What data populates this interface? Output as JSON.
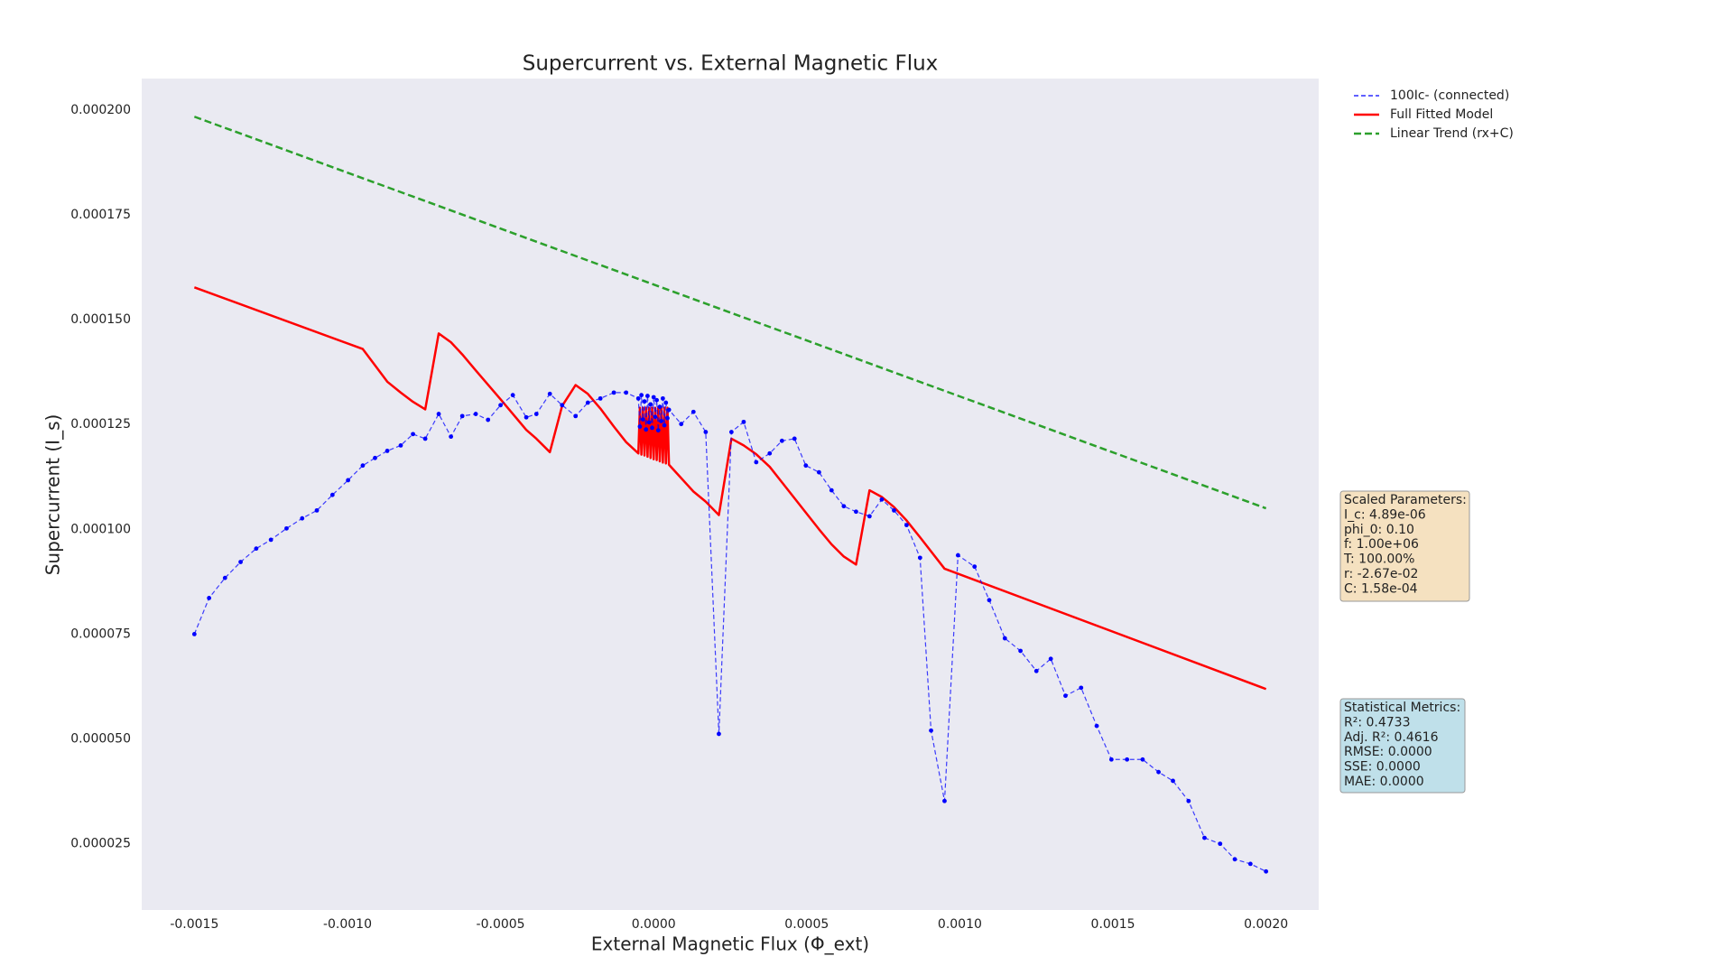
{
  "chart_data": {
    "type": "line",
    "title": "Supercurrent vs. External Magnetic Flux",
    "x_label": "External Magnetic Flux (Φ_ext)",
    "y_label": "Supercurrent (I_s)",
    "xlim": [
      -0.001672,
      0.002172
    ],
    "ylim": [
      9.2e-06,
      0.0002075
    ],
    "xticks": [
      {
        "value": -0.0015,
        "label": "-0.0015"
      },
      {
        "value": -0.001,
        "label": "-0.0010"
      },
      {
        "value": -0.0005,
        "label": "-0.0005"
      },
      {
        "value": 0,
        "label": "0.0000"
      },
      {
        "value": 0.0005,
        "label": "0.0005"
      },
      {
        "value": 0.001,
        "label": "0.0010"
      },
      {
        "value": 0.0015,
        "label": "0.0015"
      },
      {
        "value": 0.002,
        "label": "0.0020"
      }
    ],
    "yticks": [
      {
        "value": 2.5e-05,
        "label": "0.000025"
      },
      {
        "value": 5e-05,
        "label": "0.000050"
      },
      {
        "value": 7.5e-05,
        "label": "0.000075"
      },
      {
        "value": 0.0001,
        "label": "0.000100"
      },
      {
        "value": 0.000125,
        "label": "0.000125"
      },
      {
        "value": 0.00015,
        "label": "0.000150"
      },
      {
        "value": 0.000175,
        "label": "0.000175"
      },
      {
        "value": 0.0002,
        "label": "0.000200"
      }
    ],
    "grid": false,
    "background": "#eaeaf2",
    "legend_position": "outside upper right",
    "series": [
      {
        "name": "100Ic- (connected)",
        "color": "#0000ff",
        "linestyle": "dashed",
        "marker": true,
        "x": [
          -0.0015,
          -0.001452,
          -0.0014,
          -0.001349,
          -0.001298,
          -0.00125,
          -0.001199,
          -0.001148,
          -0.0011,
          -0.001049,
          -0.000998,
          -0.00095,
          -0.00091,
          -0.00087,
          -0.000826,
          -0.000786,
          -0.000746,
          -0.000702,
          -0.000662,
          -0.000625,
          -0.000581,
          -0.000541,
          -0.0005,
          -0.00046,
          -0.000416,
          -0.000383,
          -0.000339,
          -0.000299,
          -0.000255,
          -0.000215,
          -0.000174,
          -0.00013,
          -9e-05,
          -5e-05,
          -4.5e-05,
          -4e-05,
          -3.5e-05,
          -3e-05,
          -2.5e-05,
          -2e-05,
          -1.5e-05,
          -1e-05,
          -5e-06,
          0,
          5e-06,
          1e-05,
          1.5e-05,
          2e-05,
          2.5e-05,
          3e-05,
          3.5e-05,
          4e-05,
          4.5e-05,
          5e-05,
          9e-05,
          0.00013,
          0.00017,
          0.000213,
          0.000254,
          0.000294,
          0.000335,
          0.000379,
          0.000419,
          0.00046,
          0.000497,
          0.00054,
          0.000581,
          0.000621,
          0.000661,
          0.000705,
          0.000745,
          0.000785,
          0.000826,
          0.00087,
          0.000906,
          0.00095,
          0.000994,
          0.001048,
          0.001096,
          0.001147,
          0.001198,
          0.00125,
          0.001297,
          0.001345,
          0.001396,
          0.001447,
          0.001495,
          0.001546,
          0.001597,
          0.001649,
          0.001696,
          0.001747,
          0.001799,
          0.00185,
          0.001898,
          0.001949,
          0.002
        ],
        "values": [
          7.5e-05,
          8.36e-05,
          8.84e-05,
          9.22e-05,
          9.54e-05,
          9.75e-05,
          0.0001002,
          0.0001026,
          0.0001045,
          0.0001082,
          0.0001117,
          0.0001152,
          0.000117,
          0.0001187,
          0.00012,
          0.0001227,
          0.0001216,
          0.0001275,
          0.0001221,
          0.000127,
          0.0001275,
          0.0001261,
          0.0001296,
          0.000132,
          0.0001267,
          0.0001275,
          0.0001323,
          0.0001296,
          0.000127,
          0.0001302,
          0.0001312,
          0.0001326,
          0.0001326,
          0.0001312,
          0.0001245,
          0.000132,
          0.0001262,
          0.0001305,
          0.0001238,
          0.0001318,
          0.0001255,
          0.0001298,
          0.0001242,
          0.0001315,
          0.0001268,
          0.0001308,
          0.0001236,
          0.0001292,
          0.0001258,
          0.0001312,
          0.0001248,
          0.0001302,
          0.0001265,
          0.0001285,
          0.0001251,
          0.000128,
          0.0001232,
          5.12e-05,
          0.0001232,
          0.0001256,
          0.000116,
          0.0001181,
          0.0001211,
          0.0001216,
          0.0001152,
          0.0001136,
          0.0001093,
          0.0001055,
          0.0001042,
          0.0001031,
          0.0001071,
          0.0001045,
          0.000101,
          9.32e-05,
          5.2e-05,
          3.52e-05,
          9.38e-05,
          9.11e-05,
          8.31e-05,
          7.4e-05,
          7.1e-05,
          6.62e-05,
          6.91e-05,
          6.03e-05,
          6.22e-05,
          5.31e-05,
          4.51e-05,
          4.51e-05,
          4.51e-05,
          4.21e-05,
          4e-05,
          3.52e-05,
          2.64e-05,
          2.5e-05,
          2.13e-05,
          2.02e-05,
          1.84e-05
        ]
      },
      {
        "name": "Full Fitted Model",
        "color": "#ff0000",
        "linestyle": "solid",
        "marker": false,
        "x": [
          -0.0015,
          -0.00095,
          -0.00087,
          -0.000826,
          -0.000786,
          -0.000746,
          -0.000702,
          -0.000662,
          -0.000625,
          -0.000581,
          -0.0005,
          -0.000416,
          -0.000383,
          -0.000339,
          -0.000299,
          -0.000255,
          -0.000215,
          -0.000174,
          -0.00013,
          -9e-05,
          -5e-05,
          -4.5e-05,
          -4e-05,
          -3.5e-05,
          -3e-05,
          -2.5e-05,
          -2e-05,
          -1.5e-05,
          -1e-05,
          -5e-06,
          0,
          5e-06,
          1e-05,
          1.5e-05,
          2e-05,
          2.5e-05,
          3e-05,
          3.5e-05,
          4e-05,
          4.5e-05,
          5e-05,
          9e-05,
          0.00013,
          0.00017,
          0.000213,
          0.000254,
          0.000294,
          0.000335,
          0.000379,
          0.000419,
          0.00046,
          0.00054,
          0.000581,
          0.000621,
          0.000661,
          0.000705,
          0.000745,
          0.000785,
          0.000826,
          0.00087,
          0.00095,
          0.002
        ],
        "values": [
          0.0001577,
          0.000143,
          0.0001352,
          0.0001326,
          0.0001304,
          0.0001286,
          0.0001467,
          0.0001446,
          0.0001417,
          0.0001379,
          0.000131,
          0.0001237,
          0.0001216,
          0.0001184,
          0.0001294,
          0.0001344,
          0.0001323,
          0.0001288,
          0.0001245,
          0.0001208,
          0.0001181,
          0.000129,
          0.0001178,
          0.000129,
          0.0001176,
          0.000129,
          0.0001173,
          0.000129,
          0.000117,
          0.000129,
          0.0001167,
          0.000129,
          0.0001165,
          0.000129,
          0.0001162,
          0.000129,
          0.0001159,
          0.000129,
          0.0001157,
          0.000129,
          0.0001154,
          0.0001122,
          0.000109,
          0.0001066,
          0.0001034,
          0.0001216,
          0.00012,
          0.0001179,
          0.0001149,
          0.0001112,
          0.0001074,
          0.0001,
          9.64e-05,
          9.35e-05,
          9.16e-05,
          0.0001093,
          0.0001077,
          0.0001053,
          0.0001021,
          9.81e-05,
          9.06e-05,
          6.19e-05
        ]
      },
      {
        "name": "Linear Trend (rx+C)",
        "color": "#2ca02c",
        "linestyle": "dashed",
        "marker": false,
        "x": [
          -0.0015,
          0.002
        ],
        "values": [
          0.0001984,
          0.000105
        ]
      }
    ],
    "annotations": [
      {
        "color": "#f5e1c0",
        "lines": [
          "Scaled Parameters:",
          "I_c: 4.89e-06",
          "phi_0: 0.10",
          "f: 1.00e+06",
          "T: 100.00%",
          "r: -2.67e-02",
          "C: 1.58e-04"
        ]
      },
      {
        "color": "#bfe0ea",
        "lines": [
          "Statistical Metrics:",
          "R²: 0.4733",
          "Adj. R²: 0.4616",
          "RMSE: 0.0000",
          "SSE: 0.0000",
          "MAE: 0.0000"
        ]
      }
    ]
  }
}
